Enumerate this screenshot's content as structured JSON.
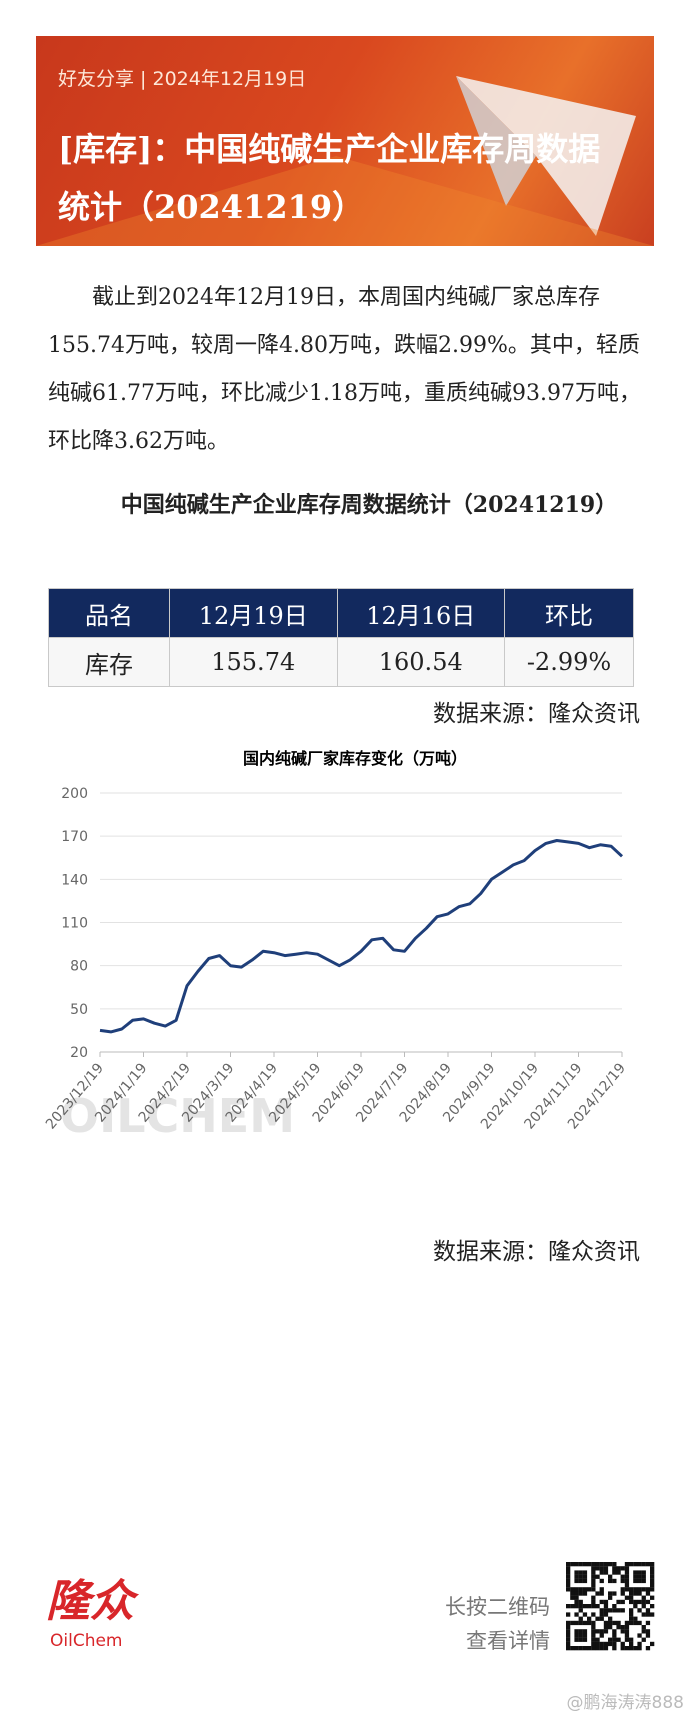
{
  "header": {
    "tag": "好友分享",
    "date": "2024年12月19日",
    "title": "[库存]：中国纯碱生产企业库存周数据统计（20241219）"
  },
  "paragraph": "截止到2024年12月19日，本周国内纯碱厂家总库存155.74万吨，较周一降4.80万吨，跌幅2.99%。其中，轻质纯碱61.77万吨，环比减少1.18万吨，重质纯碱93.97万吨，环比降3.62万吨。",
  "table_title": "中国纯碱生产企业库存周数据统计（20241219）",
  "table": {
    "header": [
      "品名",
      "12月19日",
      "12月16日",
      "环比"
    ],
    "rows": [
      [
        "库存",
        "155.74",
        "160.54",
        "-2.99%"
      ]
    ]
  },
  "source_1": "数据来源：隆众资讯",
  "chart_data": {
    "type": "line",
    "title": "国内纯碱厂家库存变化（万吨）",
    "watermark": "OILCHEM",
    "categories": [
      "2023/12/19",
      null,
      null,
      null,
      "2024/1/19",
      null,
      null,
      null,
      "2024/2/19",
      null,
      null,
      null,
      "2024/3/19",
      null,
      null,
      null,
      "2024/4/19",
      null,
      null,
      null,
      "2024/5/19",
      null,
      null,
      null,
      "2024/6/19",
      null,
      null,
      null,
      "2024/7/19",
      null,
      null,
      null,
      "2024/8/19",
      null,
      null,
      null,
      "2024/9/19",
      null,
      null,
      null,
      "2024/10/19",
      null,
      null,
      null,
      "2024/11/19",
      null,
      null,
      null,
      "2024/12/19"
    ],
    "values": [
      35,
      34,
      36,
      42,
      43,
      40,
      38,
      42,
      66,
      76,
      85,
      87,
      80,
      79,
      84,
      90,
      89,
      87,
      88,
      89,
      88,
      84,
      80,
      84,
      90,
      98,
      99,
      91,
      90,
      99,
      106,
      114,
      116,
      121,
      123,
      130,
      140,
      145,
      150,
      153,
      160,
      165,
      167,
      166,
      165,
      162,
      164,
      163,
      156
    ],
    "color": "#1f3f7a",
    "ylim": [
      20,
      200
    ],
    "yticks": [
      20,
      50,
      80,
      110,
      140,
      170,
      200
    ],
    "grid": true
  },
  "source_2": "数据来源：隆众资讯",
  "footer": {
    "logo": "隆众",
    "logo_en": "OilChem",
    "qr_line_1": "长按二维码",
    "qr_line_2": "查看详情",
    "weibo": "@鹏海涛涛888"
  }
}
